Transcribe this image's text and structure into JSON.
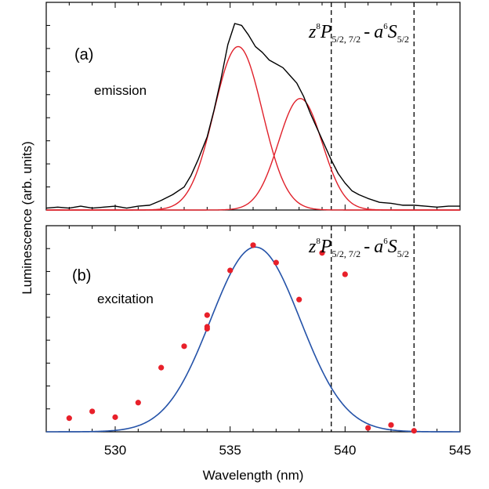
{
  "chart_data": [
    {
      "panel": "(a)",
      "type": "line",
      "annotation": "emission",
      "transition_label": {
        "base": "z",
        "sup": "8",
        "letter": "P",
        "sub": "5/2, 7/2",
        "sep": "-",
        "base2": "a",
        "sup2": "6",
        "letter2": "S",
        "sub2": "5/2"
      },
      "xlim": [
        527,
        545
      ],
      "ylim": [
        0,
        1.08
      ],
      "vlines": [
        539.4,
        543.0
      ],
      "colors": {
        "measured": "#000000",
        "fit": "#e0202a"
      },
      "gaussians": [
        {
          "center": 535.35,
          "sigma": 1.05,
          "amp": 0.85
        },
        {
          "center": 538.05,
          "sigma": 0.95,
          "amp": 0.58
        }
      ],
      "measured": {
        "x": [
          527.0,
          527.5,
          528.0,
          528.5,
          529.0,
          529.5,
          530.0,
          530.5,
          531.0,
          531.5,
          532.0,
          532.5,
          533.0,
          533.3,
          533.6,
          534.0,
          534.3,
          534.6,
          534.9,
          535.2,
          535.5,
          535.8,
          536.1,
          536.4,
          536.7,
          537.0,
          537.3,
          537.6,
          537.9,
          538.2,
          538.5,
          538.8,
          539.1,
          539.4,
          539.7,
          540.0,
          540.3,
          540.6,
          541.0,
          541.5,
          542.0,
          542.5,
          543.0,
          543.5,
          544.0,
          544.5,
          545.0
        ],
        "y": [
          0.01,
          0.015,
          0.01,
          0.02,
          0.01,
          0.015,
          0.02,
          0.01,
          0.02,
          0.025,
          0.05,
          0.08,
          0.12,
          0.18,
          0.26,
          0.38,
          0.52,
          0.68,
          0.86,
          0.97,
          0.96,
          0.91,
          0.85,
          0.82,
          0.78,
          0.76,
          0.74,
          0.7,
          0.66,
          0.59,
          0.5,
          0.42,
          0.34,
          0.26,
          0.19,
          0.14,
          0.1,
          0.08,
          0.06,
          0.04,
          0.035,
          0.025,
          0.025,
          0.02,
          0.015,
          0.02,
          0.02
        ]
      }
    },
    {
      "panel": "(b)",
      "type": "scatter",
      "annotation": "excitation",
      "transition_label": {
        "base": "z",
        "sup": "8",
        "letter": "P",
        "sub": "5/2, 7/2",
        "sep": "-",
        "base2": "a",
        "sup2": "6",
        "letter2": "S",
        "sub2": "5/2"
      },
      "xlim": [
        527,
        545
      ],
      "ylim": [
        0,
        1.06
      ],
      "vlines": [
        539.4,
        543.0
      ],
      "colors": {
        "points": "#e8202a",
        "fit": "#2452a8"
      },
      "fit": {
        "center": 536.1,
        "sigma": 1.95,
        "amp": 0.95
      },
      "points": {
        "x": [
          528,
          529,
          530,
          531,
          532,
          533,
          534,
          534,
          534,
          535,
          536,
          537,
          538,
          539,
          540,
          541,
          542,
          543
        ],
        "y": [
          0.07,
          0.105,
          0.075,
          0.15,
          0.33,
          0.44,
          0.6,
          0.53,
          0.54,
          0.83,
          0.96,
          0.87,
          0.68,
          0.92,
          0.81,
          0.02,
          0.035,
          0.005
        ]
      }
    }
  ],
  "axes": {
    "ylabel": "Luminescence (arb. units)",
    "xlabel": "Wavelength (nm)",
    "x_ticks": [
      {
        "v": 530,
        "label": "530"
      },
      {
        "v": 535,
        "label": "535"
      },
      {
        "v": 540,
        "label": "540"
      },
      {
        "v": 545,
        "label": "545"
      }
    ]
  }
}
